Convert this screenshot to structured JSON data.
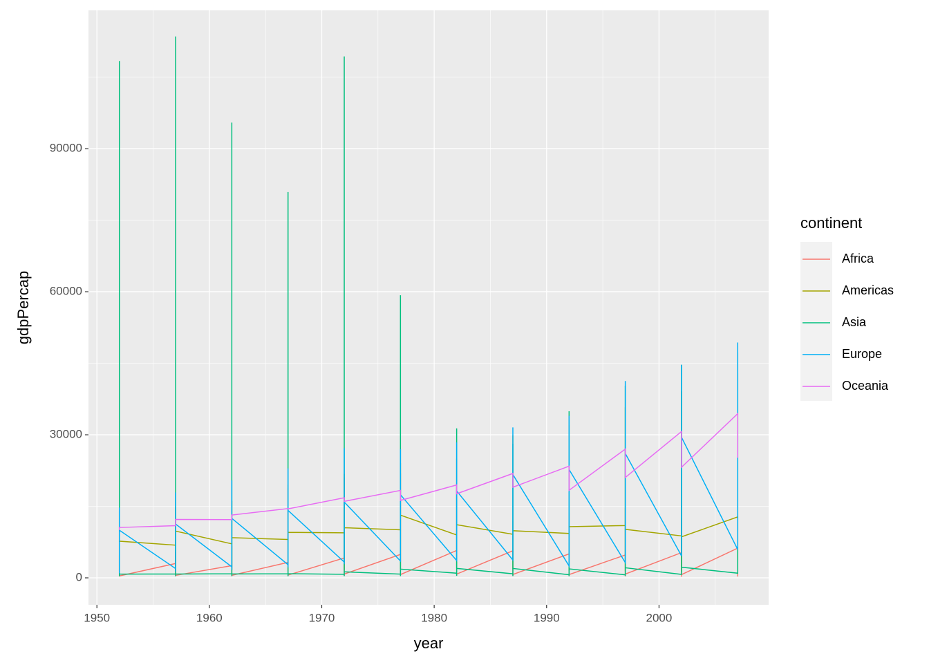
{
  "chart_data": {
    "type": "line",
    "xlabel": "year",
    "ylabel": "gdpPercap",
    "legend_title": "continent",
    "legend_position": "right",
    "xlim": [
      1949.25,
      2009.75
    ],
    "xticks": [
      1950,
      1960,
      1970,
      1980,
      1990,
      2000
    ],
    "ylim": [
      -5650,
      119000
    ],
    "yticks": [
      0,
      30000,
      60000,
      90000
    ],
    "grid": true,
    "series": [
      {
        "name": "Africa",
        "color": "#F8766D",
        "x": [
          1952,
          1952,
          1952,
          1952,
          1957,
          1957,
          1957,
          1957,
          1962,
          1962,
          1962,
          1962,
          1967,
          1967,
          1967,
          1967,
          1972,
          1972,
          1972,
          1972,
          1977,
          1977,
          1977,
          1977,
          1982,
          1982,
          1982,
          1982,
          1987,
          1987,
          1987,
          1987,
          1992,
          1992,
          1992,
          1992,
          1997,
          1997,
          1997,
          1997,
          2002,
          2002,
          2002,
          2002,
          2007,
          2007,
          2007,
          2007
        ],
        "values": [
          2449,
          4725,
          299,
          406,
          3014,
          5487,
          336,
          519,
          2551,
          6757,
          355,
          527,
          3247,
          18772,
          412,
          570,
          4183,
          21011,
          464,
          799,
          4910,
          21951,
          502,
          686,
          5745,
          17364,
          462,
          788,
          5681,
          11864,
          389,
          706,
          5023,
          13522,
          410,
          693,
          4797,
          14723,
          312,
          792,
          5288,
          12522,
          241,
          672,
          6223,
          13206,
          278,
          470
        ]
      },
      {
        "name": "Americas",
        "color": "#A3A500",
        "x": [
          1952,
          1952,
          1952,
          1952,
          1957,
          1957,
          1957,
          1957,
          1962,
          1962,
          1962,
          1962,
          1967,
          1967,
          1967,
          1967,
          1972,
          1972,
          1972,
          1972,
          1977,
          1977,
          1977,
          1977,
          1982,
          1982,
          1982,
          1982,
          1987,
          1987,
          1987,
          1987,
          1992,
          1992,
          1992,
          1992,
          1997,
          1997,
          1997,
          1997,
          2002,
          2002,
          2002,
          2002,
          2007,
          2007,
          2007,
          2007
        ],
        "values": [
          5911,
          13990,
          1398,
          7690,
          6857,
          14847,
          1544,
          9803,
          7133,
          16173,
          1663,
          8423,
          8053,
          19530,
          1453,
          9541,
          9443,
          21806,
          1654,
          10506,
          10079,
          24073,
          1874,
          13144,
          8998,
          25010,
          2011,
          11152,
          9140,
          29884,
          1823,
          9884,
          9308,
          32004,
          1456,
          10734,
          10967,
          35767,
          1341,
          10165,
          8798,
          39097,
          1270,
          8606,
          12779,
          42952,
          1202,
          11416
        ]
      },
      {
        "name": "Asia",
        "color": "#00BF7D",
        "x": [
          1952,
          1952,
          1952,
          1952,
          1957,
          1957,
          1957,
          1957,
          1962,
          1962,
          1962,
          1962,
          1967,
          1967,
          1967,
          1967,
          1972,
          1972,
          1972,
          1972,
          1977,
          1977,
          1977,
          1977,
          1982,
          1982,
          1982,
          1982,
          1987,
          1987,
          1987,
          1987,
          1992,
          1992,
          1992,
          1992,
          1997,
          1997,
          1997,
          1997,
          2002,
          2002,
          2002,
          2002,
          2007,
          2007,
          2007,
          2007
        ],
        "values": [
          779,
          108382,
          331,
          781,
          821,
          113523,
          350,
          804,
          853,
          95458,
          388,
          826,
          836,
          80895,
          349,
          863,
          740,
          109348,
          357,
          1265,
          786,
          59265,
          371,
          1830,
          978,
          31354,
          424,
          1978,
          852,
          28118,
          385,
          1972,
          649,
          34933,
          347,
          1879,
          635,
          40301,
          415,
          2117,
          727,
          44684,
          611,
          2234,
          975,
          47307,
          944,
          2281
        ]
      },
      {
        "name": "Europe",
        "color": "#00B0F6",
        "x": [
          1952,
          1952,
          1952,
          1952,
          1957,
          1957,
          1957,
          1957,
          1962,
          1962,
          1962,
          1962,
          1967,
          1967,
          1967,
          1967,
          1972,
          1972,
          1972,
          1972,
          1977,
          1977,
          1977,
          1977,
          1982,
          1982,
          1982,
          1982,
          1987,
          1987,
          1987,
          1987,
          1992,
          1992,
          1992,
          1992,
          1997,
          1997,
          1997,
          1997,
          2002,
          2002,
          2002,
          2002,
          2007,
          2007,
          2007,
          2007
        ],
        "values": [
          1601,
          14734,
          973,
          9980,
          1942,
          17909,
          1354,
          11283,
          2313,
          20431,
          1710,
          12477,
          2760,
          22966,
          2172,
          14143,
          3313,
          27195,
          2860,
          15895,
          3533,
          26982,
          3528,
          17429,
          3631,
          28398,
          3630,
          18233,
          3739,
          31541,
          3739,
          21664,
          2497,
          33965,
          2497,
          22705,
          3193,
          41283,
          3193,
          26074,
          4604,
          44684,
          4604,
          29479,
          5937,
          49357,
          5937,
          33203
        ]
      },
      {
        "name": "Oceania",
        "color": "#E76BF3",
        "x": [
          1952,
          1952,
          1957,
          1957,
          1962,
          1962,
          1967,
          1967,
          1972,
          1972,
          1977,
          1977,
          1982,
          1982,
          1987,
          1987,
          1992,
          1992,
          1997,
          1997,
          2002,
          2002,
          2007,
          2007
        ],
        "values": [
          10040,
          10557,
          10950,
          12247,
          12217,
          13176,
          14526,
          14464,
          16789,
          16046,
          18334,
          16234,
          19477,
          17632,
          21889,
          19007,
          23425,
          18363,
          26998,
          21050,
          30688,
          23190,
          34435,
          25185
        ]
      }
    ]
  }
}
